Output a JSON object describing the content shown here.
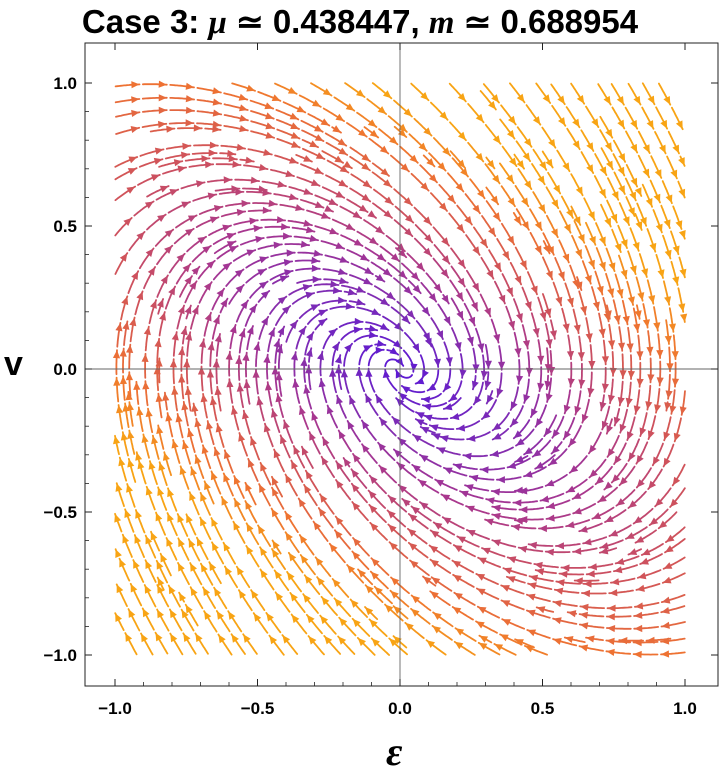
{
  "title": {
    "prefix": "Case 3: ",
    "mu_symbol": "μ",
    "mu_text": " ≃ 0.438447, ",
    "m_symbol": "m",
    "m_text": " ≃ 0.688954"
  },
  "chart_data": {
    "type": "streamplot",
    "title": "Case 3: μ ≃ 0.438447, m ≃ 0.688954",
    "xlabel": "ε",
    "ylabel": "v",
    "xlim": [
      -1.1,
      1.1
    ],
    "ylim": [
      -1.1,
      1.1
    ],
    "xticks": [
      -1.0,
      -0.5,
      0.0,
      0.5,
      1.0
    ],
    "yticks": [
      -1.0,
      -0.5,
      0.0,
      0.5,
      1.0
    ],
    "xtick_labels": [
      "−1.0",
      "−0.5",
      "0.0",
      "0.5",
      "1.0"
    ],
    "ytick_labels": [
      "−1.0",
      "−0.5",
      "0.0",
      "0.5",
      "1.0"
    ],
    "system": {
      "d_epsilon": "v",
      "d_v": "-epsilon - 2*0.438447*v"
    },
    "color_scale": [
      "#5a18d6",
      "#7a2ab8",
      "#a8378f",
      "#d0535a",
      "#ee7232",
      "#f8a414"
    ],
    "grid": false
  }
}
